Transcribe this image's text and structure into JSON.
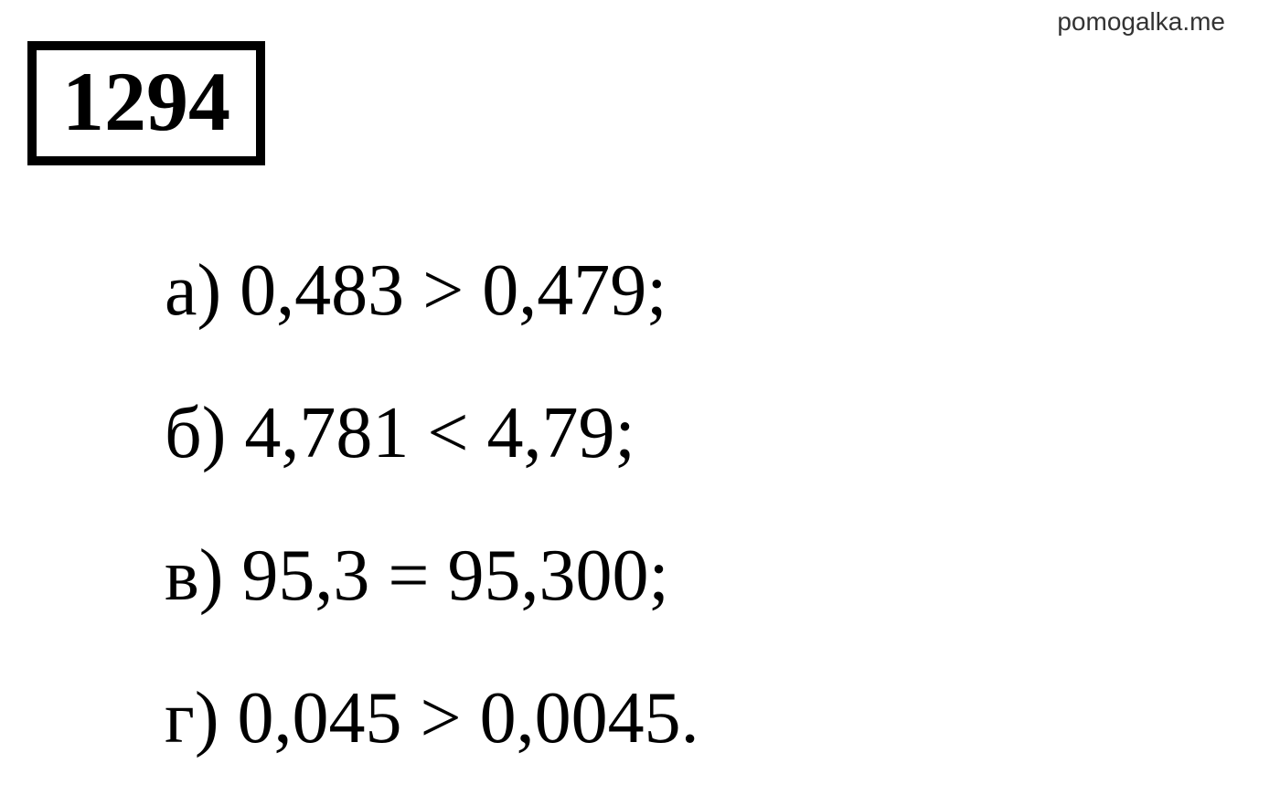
{
  "watermark": "pomogalka.me",
  "problem_number": "1294",
  "lines": {
    "a": "а) 0,483 > 0,479;",
    "b": "б) 4,781 < 4,79;",
    "c": "в) 95,3 = 95,300;",
    "d": "г) 0,045 > 0,0045."
  },
  "styling": {
    "background_color": "#ffffff",
    "text_color": "#000000",
    "font_family": "Georgia, Times New Roman, serif",
    "problem_number_fontsize": 92,
    "problem_number_fontweight": "bold",
    "problem_box_border_width": 10,
    "problem_box_border_color": "#000000",
    "content_fontsize": 80,
    "content_line_height": 1.95,
    "watermark_fontsize": 28,
    "watermark_color": "#333333"
  }
}
